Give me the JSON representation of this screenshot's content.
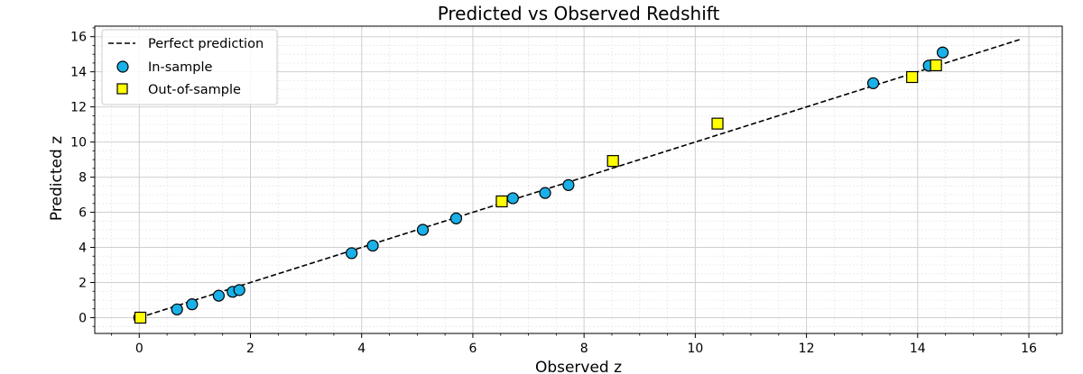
{
  "chart_data": {
    "type": "scatter",
    "title": "Predicted vs Observed Redshift",
    "xlabel": "Observed z",
    "ylabel": "Predicted z",
    "xlim": [
      -0.8,
      16.6
    ],
    "ylim": [
      -0.9,
      16.6
    ],
    "xticks": [
      0,
      2,
      4,
      6,
      8,
      10,
      12,
      14,
      16
    ],
    "yticks": [
      0,
      2,
      4,
      6,
      8,
      10,
      12,
      14,
      16
    ],
    "grid": true,
    "minor_grid": true,
    "legend_position": "upper-left",
    "reference_line": {
      "name": "Perfect prediction",
      "x": [
        0,
        15.85
      ],
      "y": [
        0,
        15.85
      ],
      "color": "#000000",
      "style": "dashed"
    },
    "series": [
      {
        "name": "In-sample",
        "marker": "circle",
        "color": "#1ab0e8",
        "points": [
          [
            0.0,
            0.0
          ],
          [
            0.68,
            0.47
          ],
          [
            0.95,
            0.76
          ],
          [
            1.43,
            1.25
          ],
          [
            1.68,
            1.47
          ],
          [
            1.8,
            1.57
          ],
          [
            3.82,
            3.67
          ],
          [
            4.2,
            4.1
          ],
          [
            5.1,
            5.0
          ],
          [
            5.7,
            5.65
          ],
          [
            6.72,
            6.8
          ],
          [
            7.3,
            7.1
          ],
          [
            7.72,
            7.55
          ],
          [
            13.2,
            13.35
          ],
          [
            14.2,
            14.35
          ],
          [
            14.45,
            15.1
          ]
        ]
      },
      {
        "name": "Out-of-sample",
        "marker": "square",
        "color": "#ffff00",
        "points": [
          [
            0.02,
            0.0
          ],
          [
            6.52,
            6.62
          ],
          [
            8.52,
            8.92
          ],
          [
            10.4,
            11.05
          ],
          [
            13.9,
            13.7
          ],
          [
            14.33,
            14.37
          ]
        ]
      }
    ]
  }
}
